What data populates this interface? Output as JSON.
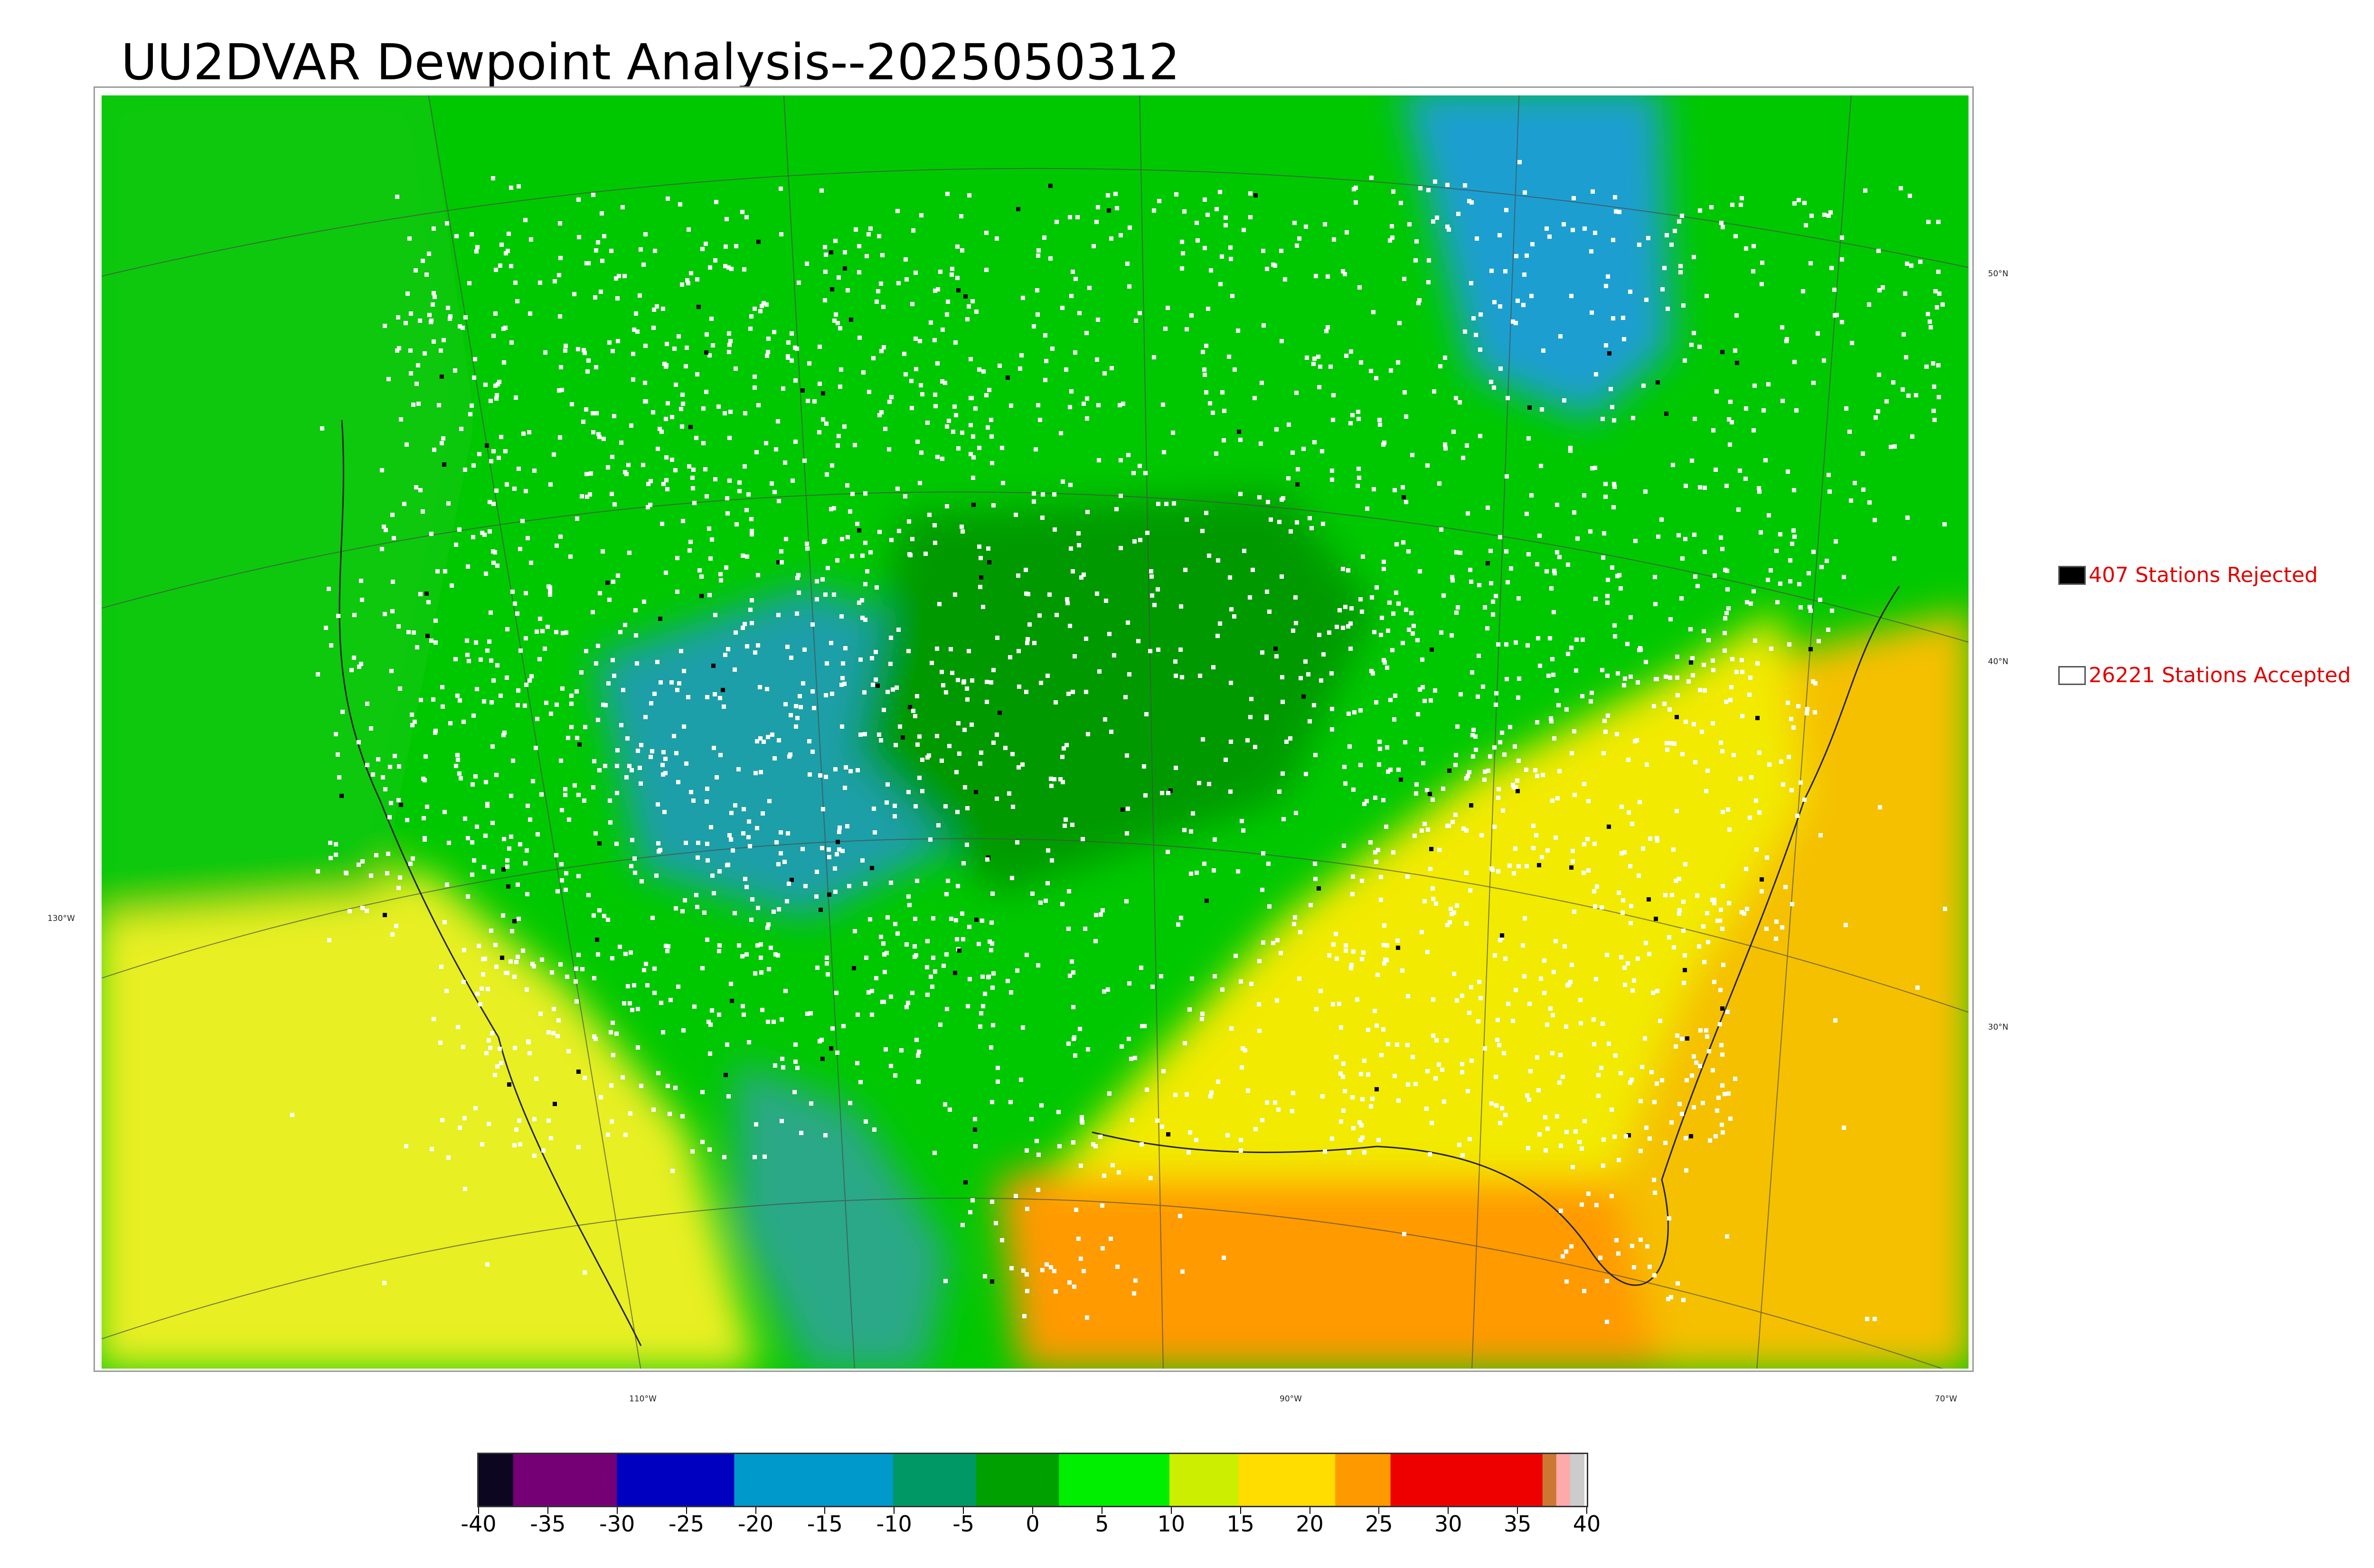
{
  "title": "UU2DVAR Dewpoint Analysis--2025050312",
  "legend": {
    "rejected": {
      "label": "407 Stations Rejected",
      "color": "#000000"
    },
    "accepted": {
      "label": "26221 Stations Accepted",
      "color": "#ffffff"
    }
  },
  "grid_labels": {
    "lat": [
      "50°N",
      "40°N",
      "30°N"
    ],
    "lon": [
      "130°W",
      "110°W",
      "90°W",
      "70°W"
    ]
  },
  "colorbar": {
    "min": -40,
    "max": 40,
    "ticks": [
      "-40",
      "-35",
      "-30",
      "-25",
      "-20",
      "-15",
      "-10",
      "-5",
      "0",
      "5",
      "10",
      "15",
      "20",
      "25",
      "30",
      "35",
      "40"
    ],
    "segments": [
      {
        "from": -40,
        "to": -37.5,
        "color": "#0d0620"
      },
      {
        "from": -37.5,
        "to": -30,
        "color": "#750075"
      },
      {
        "from": -30,
        "to": -21.5,
        "color": "#0000c0"
      },
      {
        "from": -21.5,
        "to": -10,
        "color": "#0099cc"
      },
      {
        "from": -10,
        "to": -4,
        "color": "#009966"
      },
      {
        "from": -4,
        "to": 2,
        "color": "#00a000"
      },
      {
        "from": 2,
        "to": 10,
        "color": "#00ee00"
      },
      {
        "from": 10,
        "to": 15,
        "color": "#ccee00"
      },
      {
        "from": 15,
        "to": 22,
        "color": "#ffdd00"
      },
      {
        "from": 22,
        "to": 26,
        "color": "#ff9900"
      },
      {
        "from": 26,
        "to": 37,
        "color": "#ee0000"
      },
      {
        "from": 37,
        "to": 38,
        "color": "#cc7733"
      },
      {
        "from": 38,
        "to": 39,
        "color": "#ffaaaa"
      },
      {
        "from": 39,
        "to": 40,
        "color": "#cccccc"
      }
    ]
  },
  "map_colors": {
    "ocean_warm": "#e8ef20",
    "gulf": "#ff9a00",
    "atlantic": "#f5c000",
    "land_green": "#00c800",
    "dark_green": "#009a00",
    "rocky_blue": "#1f9fa8",
    "hudson_blue": "#1b9fd0",
    "southeast_yellow": "#f2ea00"
  }
}
